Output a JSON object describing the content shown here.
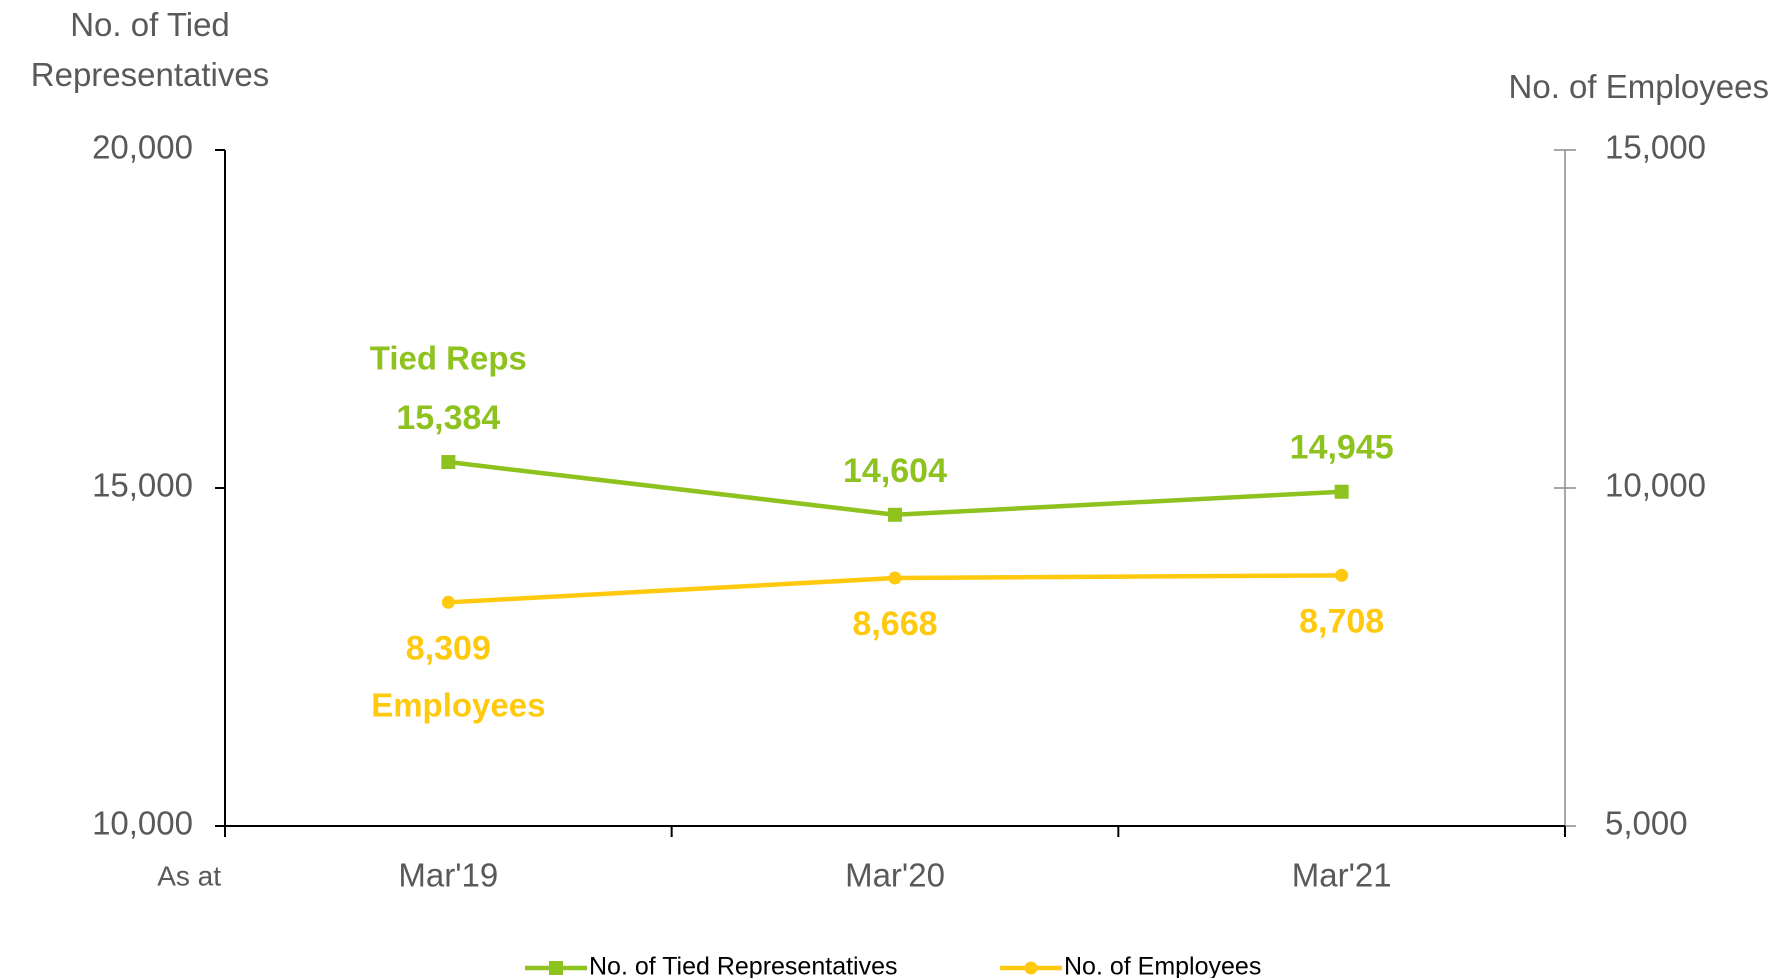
{
  "chart_data": {
    "type": "line",
    "ylabel": "No. of Tied Representatives",
    "y2label": "No. of Employees",
    "xlabel": "As at",
    "categories": [
      "Mar'19",
      "Mar'20",
      "Mar'21"
    ],
    "series": [
      {
        "name": "No. of Tied Representatives",
        "color": "#8dc21f",
        "marker": "square",
        "values": [
          15384,
          14604,
          14945
        ],
        "value_labels": [
          "15,384",
          "14,604",
          "14,945"
        ]
      },
      {
        "name": "No. of Employees",
        "color": "#ffc90e",
        "marker": "circle",
        "axis": "y2",
        "values": [
          8309,
          8668,
          8708
        ],
        "value_labels": [
          "8,309",
          "8,668",
          "8,708"
        ]
      }
    ],
    "annotations": [
      "Tied Reps",
      "Employees"
    ],
    "ylim": [
      10000,
      20000
    ],
    "yticks": [
      {
        "value": 10000,
        "label": "10,000"
      },
      {
        "value": 15000,
        "label": "15,000"
      },
      {
        "value": 20000,
        "label": "20,000"
      }
    ],
    "y2lim": [
      5000,
      15000
    ],
    "y2ticks": [
      {
        "value": 5000,
        "label": "5,000"
      },
      {
        "value": 10000,
        "label": "10,000"
      },
      {
        "value": 15000,
        "label": "15,000"
      }
    ],
    "legend": "bottom"
  }
}
